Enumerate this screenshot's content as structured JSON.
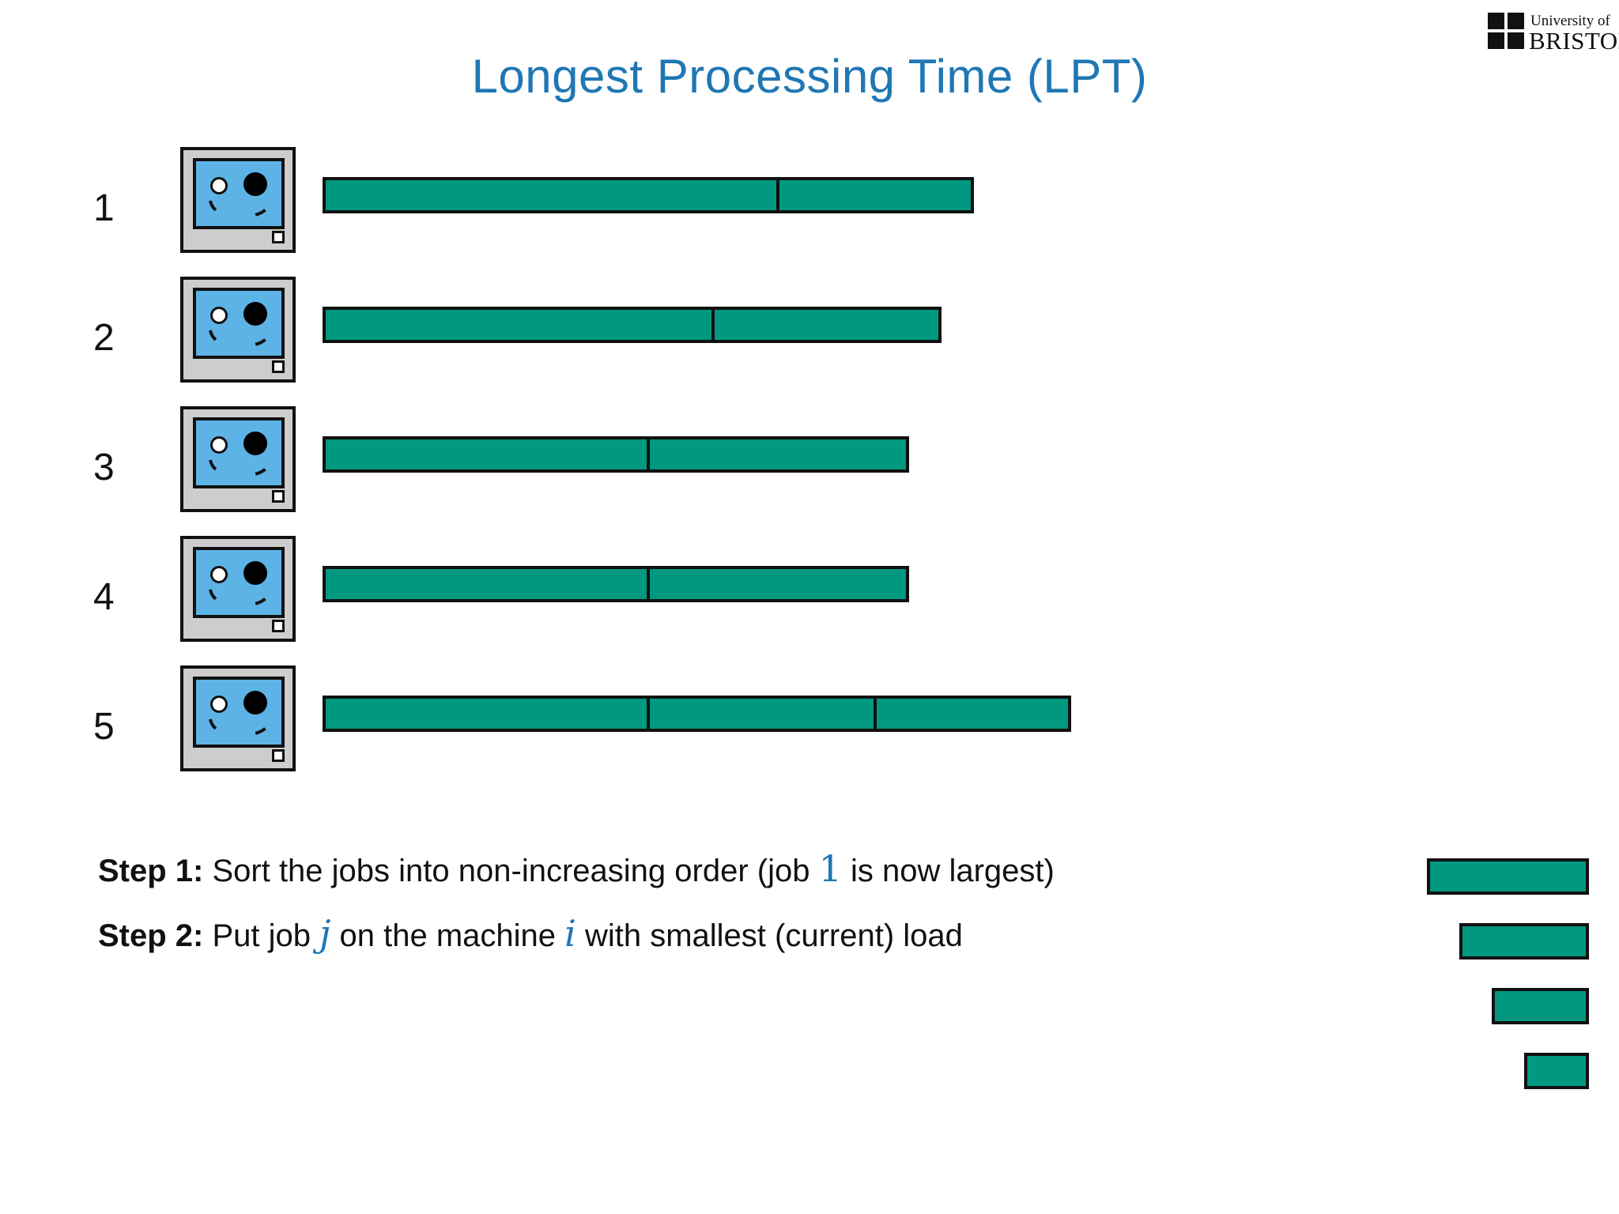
{
  "title": "Longest Processing Time (LPT)",
  "logo": {
    "line1": "University of",
    "line2": "BRISTOL"
  },
  "colors": {
    "title": "#1f77b4",
    "job_fill": "#009980",
    "screen": "#5db3e6",
    "case": "#cdcdcd",
    "outline": "#111111"
  },
  "machines": [
    {
      "label": "1",
      "jobs": [
        7,
        3
      ]
    },
    {
      "label": "2",
      "jobs": [
        6,
        3.5
      ]
    },
    {
      "label": "3",
      "jobs": [
        5,
        4
      ]
    },
    {
      "label": "4",
      "jobs": [
        5,
        4
      ]
    },
    {
      "label": "5",
      "jobs": [
        5,
        3.5,
        3
      ]
    }
  ],
  "pending_jobs": [
    2.5,
    2,
    1.5,
    1
  ],
  "steps": [
    {
      "label": "Step 1:",
      "parts": [
        {
          "text": " Sort the jobs into non-increasing order (job "
        },
        {
          "math": "1"
        },
        {
          "text": " is now largest)"
        }
      ]
    },
    {
      "label": "Step 2:",
      "parts": [
        {
          "text": " Put job "
        },
        {
          "math": "j",
          "italic": true
        },
        {
          "text": " on the machine "
        },
        {
          "math": "i",
          "italic": true
        },
        {
          "text": " with smallest (current) load"
        }
      ]
    }
  ]
}
